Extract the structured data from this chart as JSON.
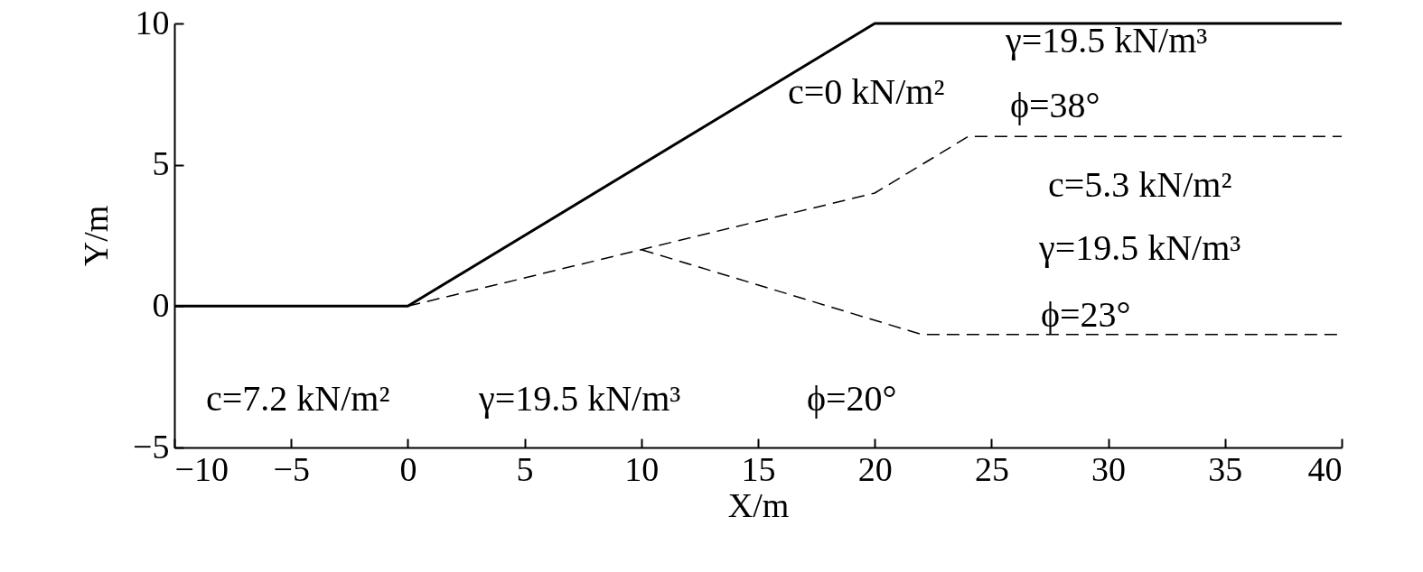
{
  "chart_data": {
    "type": "line",
    "xlabel": "X/m",
    "ylabel": "Y/m",
    "xlim": [
      -10,
      40
    ],
    "ylim": [
      -5,
      10
    ],
    "xticks": [
      -10,
      -5,
      0,
      5,
      10,
      15,
      20,
      25,
      30,
      35,
      40
    ],
    "yticks": [
      -5,
      0,
      5,
      10
    ],
    "grid": false,
    "marker": "none",
    "series": [
      {
        "color": "#000000",
        "line_style": "solid",
        "x": [
          -10,
          0,
          20,
          40
        ],
        "values": [
          0,
          0,
          10,
          10
        ]
      },
      {
        "color": "#000000",
        "line_style": "dashed",
        "x": [
          0,
          10,
          20,
          24,
          40
        ],
        "values": [
          0,
          2,
          4,
          6,
          6
        ]
      },
      {
        "color": "#000000",
        "line_style": "dashed",
        "x": [
          10,
          22,
          40
        ],
        "values": [
          2,
          -1,
          -1
        ]
      }
    ],
    "annotations": [
      "c=0 kN/m²",
      "γ=19.5 kN/m³",
      "ϕ=38°",
      "c=5.3 kN/m²",
      "γ=19.5 kN/m³",
      "ϕ=23°",
      "c=7.2 kN/m²",
      "γ=19.5 kN/m³",
      "ϕ=20°"
    ]
  }
}
